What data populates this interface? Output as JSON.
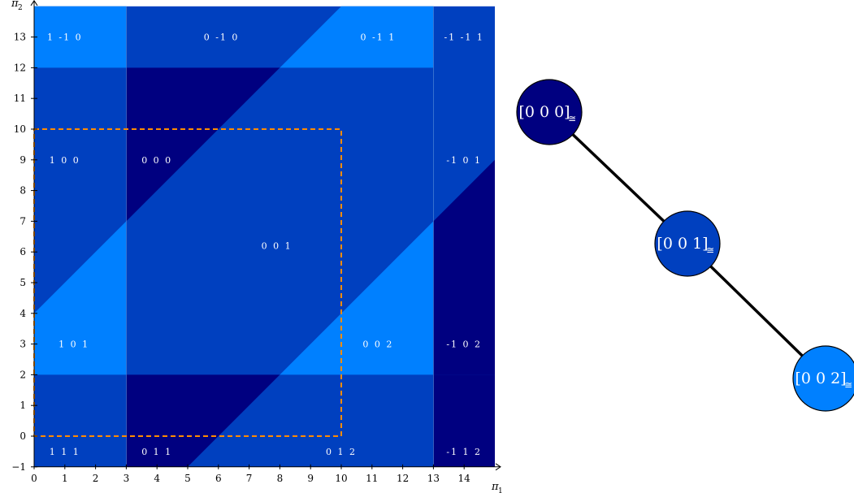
{
  "axes": {
    "x_label": "π",
    "x_label_sub": "1",
    "y_label": "π",
    "y_label_sub": "2",
    "x_ticks": [
      0,
      1,
      2,
      3,
      4,
      5,
      6,
      7,
      8,
      9,
      10,
      11,
      12,
      13,
      14
    ],
    "y_ticks": [
      -1,
      0,
      1,
      2,
      3,
      4,
      5,
      6,
      7,
      8,
      9,
      10,
      11,
      12,
      13
    ],
    "x_range": [
      0,
      15
    ],
    "y_range": [
      -1,
      14
    ]
  },
  "colors": {
    "level0": "#000080",
    "level1": "#0040bf",
    "level2": "#0080ff",
    "box": "#ff8c00",
    "edge": "#000000"
  },
  "grid": {
    "cols": [
      [
        0,
        3
      ],
      [
        3,
        13
      ],
      [
        13,
        15
      ]
    ],
    "rows": [
      [
        -1,
        2
      ],
      [
        2,
        12
      ],
      [
        12,
        14
      ]
    ]
  },
  "regions": [
    {
      "label": "1 -1 0",
      "x": 1,
      "y": 13
    },
    {
      "label": "0 -1 0",
      "x": 6.1,
      "y": 13
    },
    {
      "label": "0 -1 1",
      "x": 11.2,
      "y": 13
    },
    {
      "label": "-1 -1 1",
      "x": 14,
      "y": 13
    },
    {
      "label": "1 0 0",
      "x": 1,
      "y": 9
    },
    {
      "label": "0 0 0",
      "x": 4,
      "y": 9
    },
    {
      "label": "-1 0 1",
      "x": 14,
      "y": 9
    },
    {
      "label": "0 0 1",
      "x": 7.9,
      "y": 6.2
    },
    {
      "label": "1 0 1",
      "x": 1.3,
      "y": 3
    },
    {
      "label": "0 0 2",
      "x": 11.2,
      "y": 3
    },
    {
      "label": "-1 0 2",
      "x": 14,
      "y": 3
    },
    {
      "label": "1 1 1",
      "x": 1,
      "y": -0.5
    },
    {
      "label": "0 1 1",
      "x": 4,
      "y": -0.5
    },
    {
      "label": "0 1 2",
      "x": 10,
      "y": -0.5
    },
    {
      "label": "-1 1 2",
      "x": 14,
      "y": -0.5
    }
  ],
  "box": {
    "x": [
      0,
      10
    ],
    "y": [
      0,
      10
    ]
  },
  "graph": {
    "nodes": [
      {
        "label": "[0 0 0]",
        "sub": "≅",
        "level": 0
      },
      {
        "label": "[0 0 1]",
        "sub": "≅",
        "level": 1
      },
      {
        "label": "[0 0 2]",
        "sub": "≅",
        "level": 2
      }
    ],
    "edges": [
      [
        0,
        1
      ],
      [
        1,
        2
      ]
    ]
  }
}
